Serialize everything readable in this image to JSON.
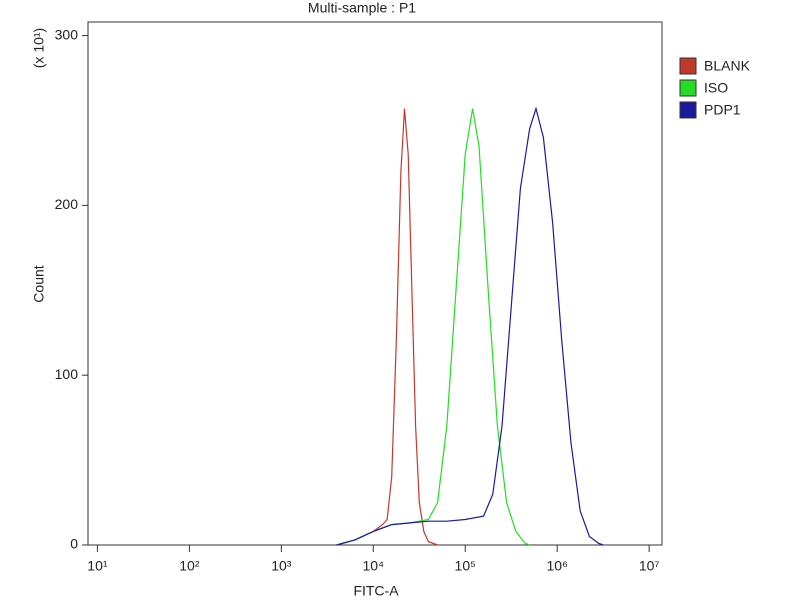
{
  "chart_data": {
    "type": "line",
    "title": "Multi-sample : P1",
    "x_label": "FITC-A",
    "y_label": "Count",
    "y_multiplier": "(x 10¹)",
    "x_scale": "log",
    "xlim": [
      7.9,
      13800000
    ],
    "xticks": [
      {
        "value": 10,
        "label": "10¹"
      },
      {
        "value": 100,
        "label": "10²"
      },
      {
        "value": 1000,
        "label": "10³"
      },
      {
        "value": 10000,
        "label": "10⁴"
      },
      {
        "value": 100000,
        "label": "10⁵"
      },
      {
        "value": 1000000,
        "label": "10⁶"
      },
      {
        "value": 10000000,
        "label": "10⁷"
      }
    ],
    "ylim": [
      0,
      308
    ],
    "yticks": [
      0,
      100,
      200,
      300
    ],
    "legend": "right",
    "series": [
      {
        "name": "BLANK",
        "color": "#c0392b",
        "x": [
          3981,
          6310,
          10000,
          12589,
          14125,
          15849,
          17783,
          19953,
          21878,
          23988,
          26303,
          28840,
          31623,
          35481,
          39811,
          50119
        ],
        "values": [
          0,
          3,
          8,
          12,
          15,
          40,
          120,
          220,
          257,
          230,
          150,
          70,
          25,
          8,
          2,
          0
        ]
      },
      {
        "name": "ISO",
        "color": "#22dd22",
        "x": [
          3981,
          6310,
          10000,
          15849,
          25119,
          39811,
          50119,
          63096,
          79433,
          100000,
          120226,
          141254,
          177828,
          223872,
          281838,
          354813,
          446684,
          501187
        ],
        "values": [
          0,
          3,
          8,
          12,
          13,
          15,
          25,
          70,
          150,
          230,
          257,
          235,
          150,
          70,
          25,
          8,
          1,
          0
        ]
      },
      {
        "name": "PDP1",
        "color": "#1a1a9c",
        "x": [
          3981,
          6310,
          10000,
          15849,
          25119,
          39811,
          63096,
          100000,
          158489,
          199526,
          251189,
          316228,
          398107,
          501187,
          588844,
          707946,
          891251,
          1122018,
          1412538,
          1778279,
          2238721,
          2818383,
          3162278
        ],
        "values": [
          0,
          3,
          8,
          12,
          13,
          14,
          14,
          15,
          17,
          30,
          70,
          140,
          210,
          245,
          257,
          240,
          190,
          120,
          60,
          20,
          5,
          1,
          0
        ]
      }
    ]
  }
}
